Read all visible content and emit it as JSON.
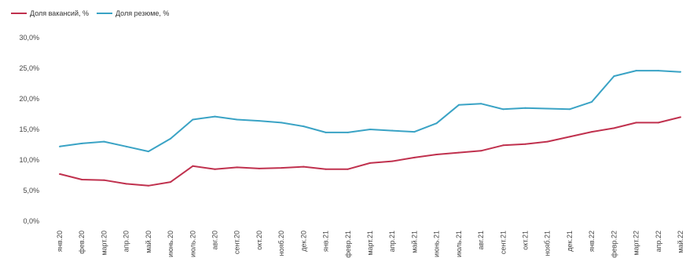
{
  "chart_data": {
    "type": "line",
    "legend_position": "top-left",
    "grid": false,
    "ylim": [
      0,
      30
    ],
    "y_ticks": [
      "0,0%",
      "5,0%",
      "10,0%",
      "15,0%",
      "20,0%",
      "25,0%",
      "30,0%"
    ],
    "y_tick_values": [
      0,
      5,
      10,
      15,
      20,
      25,
      30
    ],
    "categories": [
      "янв.20",
      "фев.20",
      "март.20",
      "апр.20",
      "май.20",
      "июнь.20",
      "июль.20",
      "авг.20",
      "сент.20",
      "окт.20",
      "нояб.20",
      "дек.20",
      "янв.21",
      "февр.21",
      "март.21",
      "апр.21",
      "май.21",
      "июнь.21",
      "июль.21",
      "авг.21",
      "сент.21",
      "окт.21",
      "нояб.21",
      "дек.21",
      "янв.22",
      "февр.22",
      "март.22",
      "апр.22",
      "май.22"
    ],
    "series": [
      {
        "name": "Доля вакансий, %",
        "color": "#c0314e",
        "values": [
          7.7,
          6.8,
          6.7,
          6.1,
          5.8,
          6.4,
          9.0,
          8.5,
          8.8,
          8.6,
          8.7,
          8.9,
          8.5,
          8.5,
          9.5,
          9.8,
          10.4,
          10.9,
          11.2,
          11.5,
          12.4,
          12.6,
          13.0,
          13.8,
          14.6,
          15.2,
          16.1,
          16.1,
          17.0
        ]
      },
      {
        "name": "Доля резюме, %",
        "color": "#3aa3c5",
        "values": [
          12.2,
          12.7,
          13.0,
          12.2,
          11.4,
          13.5,
          16.6,
          17.1,
          16.6,
          16.4,
          16.1,
          15.5,
          14.5,
          14.5,
          15.0,
          14.8,
          14.6,
          16.0,
          19.0,
          19.2,
          18.3,
          18.5,
          18.4,
          18.3,
          19.5,
          23.7,
          24.6,
          24.6,
          24.4
        ]
      }
    ]
  }
}
